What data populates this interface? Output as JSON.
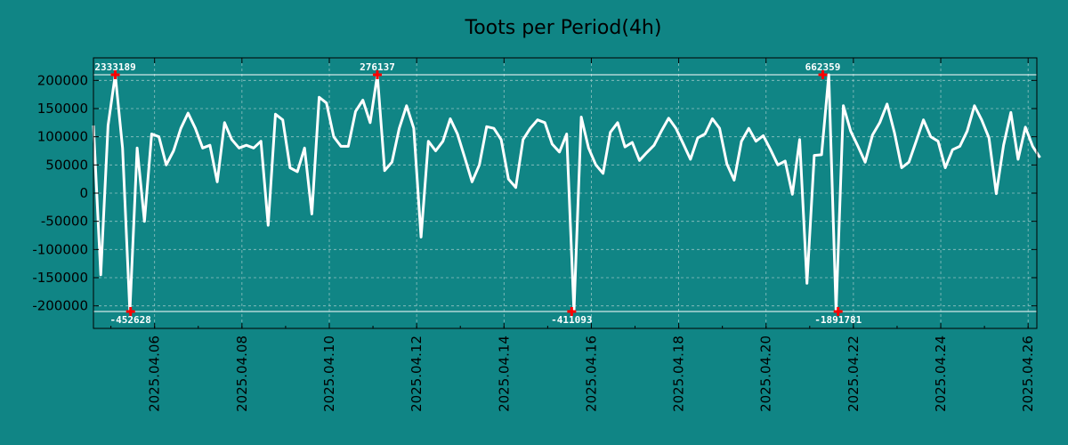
{
  "chart_data": {
    "type": "line",
    "title": "Toots per Period(4h)",
    "xlabel": "",
    "ylabel": "",
    "grid": true,
    "ylim": [
      -240000,
      240000
    ],
    "xlim_days": [
      4.6,
      26.2
    ],
    "yticks": [
      -200000,
      -150000,
      -100000,
      -50000,
      0,
      50000,
      100000,
      150000,
      200000
    ],
    "ytick_labels": [
      "-200000",
      "-150000",
      "-100000",
      "-50000",
      "0",
      "50000",
      "100000",
      "150000",
      "200000"
    ],
    "xticks_days": [
      6,
      8,
      10,
      12,
      14,
      16,
      18,
      20,
      22,
      24,
      26
    ],
    "xtick_labels": [
      "2025.04.06",
      "2025.04.08",
      "2025.04.10",
      "2025.04.12",
      "2025.04.14",
      "2025.04.16",
      "2025.04.18",
      "2025.04.20",
      "2025.04.22",
      "2025.04.24",
      "2025.04.26"
    ],
    "reference_lines": [
      210000,
      -210000
    ],
    "series": [
      {
        "name": "Toots per Period(4h)",
        "interval_days": 0.1667,
        "start_day": 4.6,
        "values": [
          120000,
          -145000,
          120000,
          210000,
          80000,
          -210000,
          80000,
          -50000,
          105000,
          100000,
          50000,
          75000,
          115000,
          142000,
          115000,
          80000,
          85000,
          20000,
          125000,
          95000,
          80000,
          85000,
          80000,
          92000,
          -57000,
          140000,
          130000,
          45000,
          38000,
          80000,
          -37000,
          170000,
          160000,
          100000,
          83000,
          83000,
          145000,
          165000,
          125000,
          210000,
          40000,
          55000,
          115000,
          155000,
          115000,
          -78000,
          92000,
          75000,
          92000,
          132000,
          105000,
          63000,
          20000,
          50000,
          118000,
          115000,
          95000,
          25000,
          10000,
          95000,
          115000,
          130000,
          125000,
          87000,
          73000,
          105000,
          -210000,
          135000,
          80000,
          50000,
          35000,
          108000,
          125000,
          82000,
          90000,
          58000,
          72000,
          85000,
          110000,
          133000,
          115000,
          88000,
          60000,
          98000,
          105000,
          132000,
          115000,
          52000,
          23000,
          92000,
          115000,
          92000,
          102000,
          77000,
          50000,
          57000,
          -2000,
          95000,
          -160000,
          67000,
          68000,
          210000,
          -210000,
          155000,
          110000,
          83000,
          55000,
          103000,
          125000,
          158000,
          108000,
          45000,
          55000,
          92000,
          130000,
          100000,
          92000,
          45000,
          77000,
          83000,
          110000,
          155000,
          130000,
          98000,
          -1000,
          85000,
          143000,
          60000,
          117000,
          83000,
          63000
        ]
      }
    ],
    "annotations": [
      {
        "label": "2333189",
        "x_day": 5.1,
        "y": 210000,
        "position": "top"
      },
      {
        "label": "-452628",
        "x_day": 5.45,
        "y": -210000,
        "position": "bottom"
      },
      {
        "label": "276137",
        "x_day": 11.1,
        "y": 210000,
        "position": "top"
      },
      {
        "label": "-411093",
        "x_day": 15.55,
        "y": -210000,
        "position": "bottom"
      },
      {
        "label": "662359",
        "x_day": 21.3,
        "y": 210000,
        "position": "top"
      },
      {
        "label": "-1891781",
        "x_day": 21.65,
        "y": -210000,
        "position": "bottom"
      }
    ]
  },
  "colors": {
    "background": "#108585",
    "line": "#ffffff",
    "marker": "#ff0000",
    "text": "#000000"
  }
}
